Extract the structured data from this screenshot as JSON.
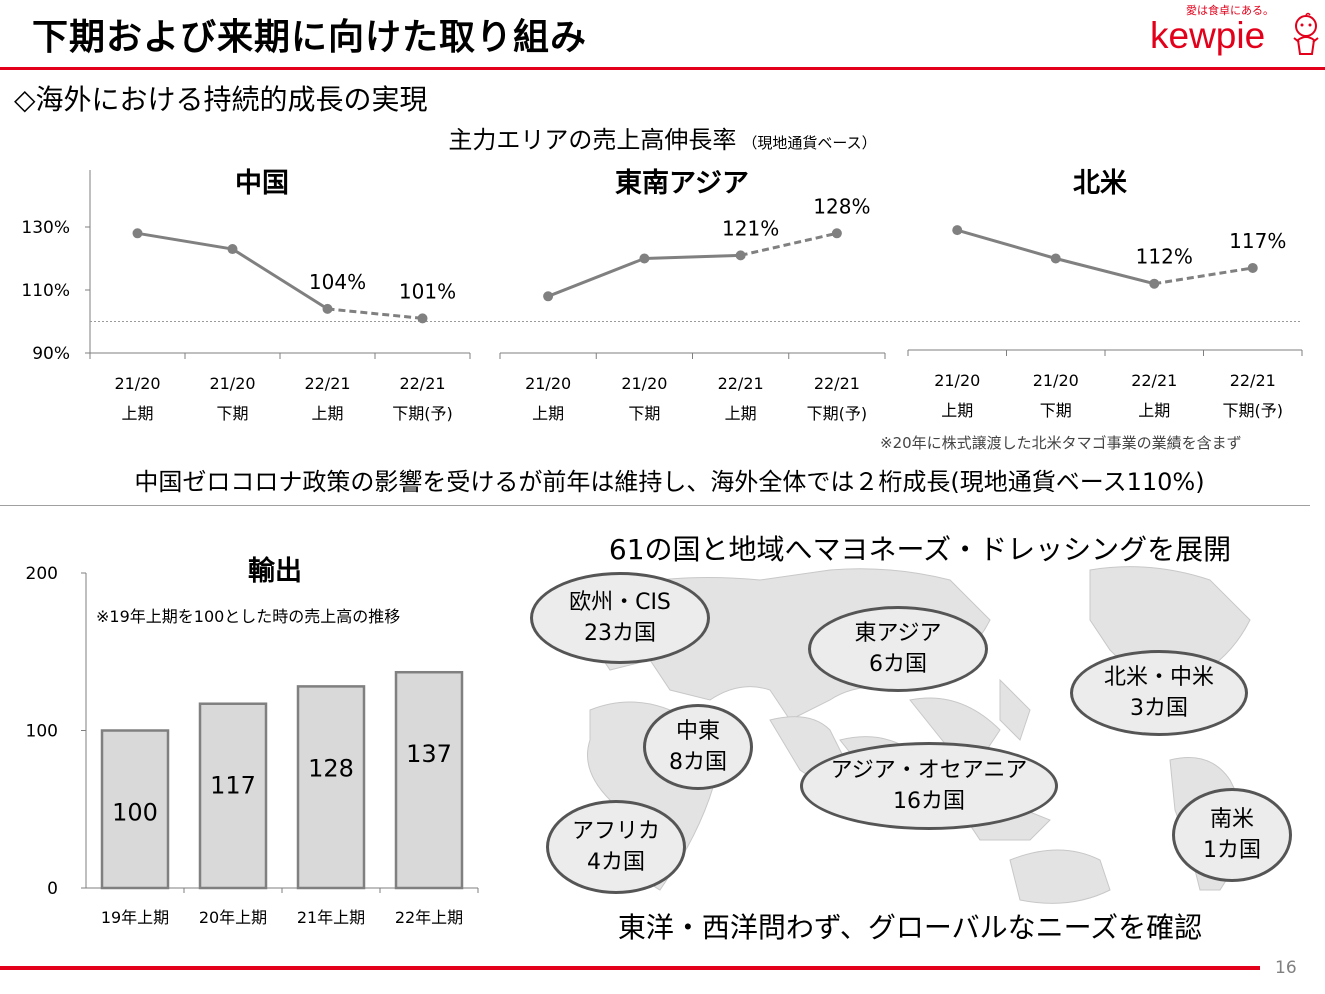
{
  "title": "下期および来期に向けた取り組み",
  "brand": {
    "tagline": "愛は食卓にある。",
    "logo": "kewpie"
  },
  "section_heading": "◇海外における持続的成長の実現",
  "growth_chart": {
    "title": "主力エリアの売上高伸長率",
    "note": "（現地通貨ベース）"
  },
  "footnote": "※20年に株式譲渡した北米タマゴ事業の業績を含まず",
  "summary": "中国ゼロコロナ政策の影響を受けるが前年は維持し、海外全体では２桁成長(現地通貨ベース110%)",
  "world": {
    "heading": "61の国と地域へマヨネーズ・ドレッシングを展開",
    "caption": "東洋・西洋問わず、グローバルなニーズを確認",
    "regions": [
      {
        "name": "欧州・CIS",
        "count": "23カ国"
      },
      {
        "name": "東アジア",
        "count": "6カ国"
      },
      {
        "name": "北米・中米",
        "count": "3カ国"
      },
      {
        "name": "中東",
        "count": "8カ国"
      },
      {
        "name": "アジア・オセアニア",
        "count": "16カ国"
      },
      {
        "name": "アフリカ",
        "count": "4カ国"
      },
      {
        "name": "南米",
        "count": "1カ国"
      }
    ]
  },
  "page_number": "16",
  "chart_data": [
    {
      "type": "line",
      "title": "中国",
      "categories": [
        "21/20\n上期",
        "21/20\n下期",
        "22/21\n上期",
        "22/21\n下期(予)"
      ],
      "values": [
        128,
        123,
        104,
        101
      ],
      "data_labels": [
        "",
        "",
        "104%",
        "101%"
      ],
      "projected_from_index": 2,
      "y_ticks": [
        "90%",
        "110%",
        "130%"
      ],
      "ylim": [
        90,
        140
      ],
      "reference_line": 100,
      "color": "#808080"
    },
    {
      "type": "line",
      "title": "東南アジア",
      "categories": [
        "21/20\n上期",
        "21/20\n下期",
        "22/21\n上期",
        "22/21\n下期(予)"
      ],
      "values": [
        108,
        120,
        121,
        128
      ],
      "data_labels": [
        "",
        "",
        "121%",
        "128%"
      ],
      "projected_from_index": 2,
      "ylim": [
        90,
        140
      ],
      "reference_line": 100,
      "color": "#808080"
    },
    {
      "type": "line",
      "title": "北米",
      "categories": [
        "21/20\n上期",
        "21/20\n下期",
        "22/21\n上期",
        "22/21\n下期(予)"
      ],
      "values": [
        129,
        120,
        112,
        117
      ],
      "data_labels": [
        "",
        "",
        "112%",
        "117%"
      ],
      "projected_from_index": 2,
      "ylim": [
        90,
        140
      ],
      "reference_line": 100,
      "color": "#808080"
    },
    {
      "type": "bar",
      "title": "輸出",
      "subtitle": "※19年上期を100とした時の売上高の推移",
      "categories": [
        "19年上期",
        "20年上期",
        "21年上期",
        "22年上期"
      ],
      "values": [
        100,
        117,
        128,
        137
      ],
      "y_ticks": [
        "0",
        "100",
        "200"
      ],
      "ylim": [
        0,
        200
      ],
      "color": "#d9d9d9"
    }
  ],
  "colors": {
    "accent": "#e2001a",
    "line": "#808080",
    "bar_fill": "#d9d9d9",
    "bubble_fill": "#ececec",
    "map_land": "#e3e3e3"
  }
}
